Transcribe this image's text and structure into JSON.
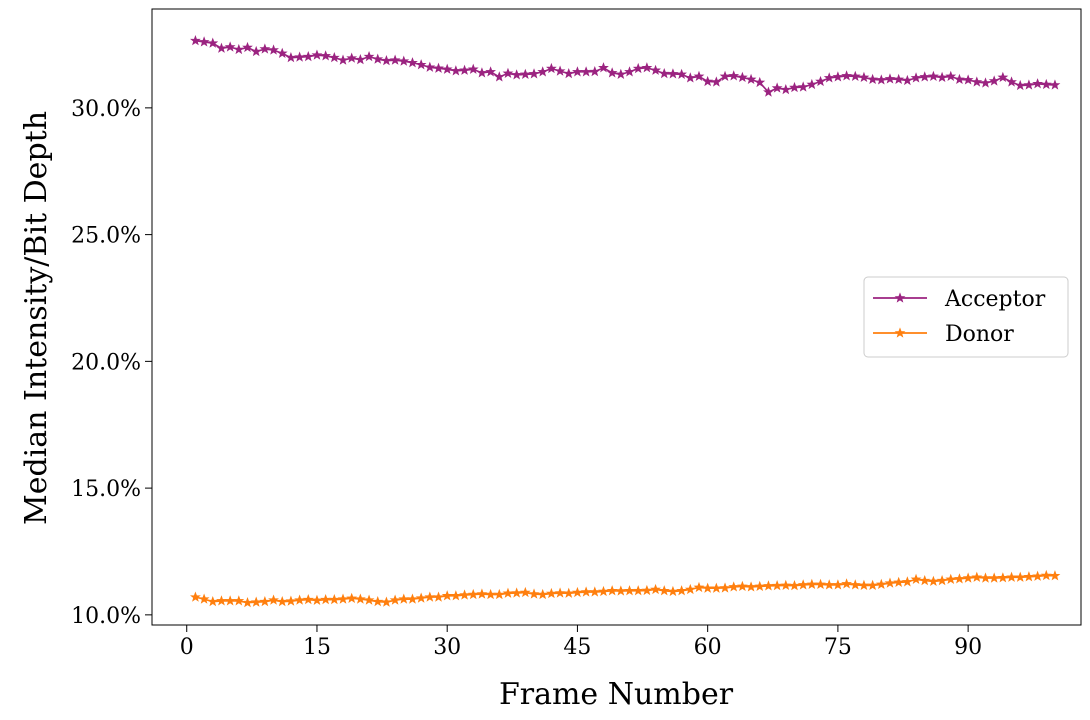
{
  "chart_data": {
    "type": "line",
    "title": "",
    "xlabel": "Frame Number",
    "ylabel": "Median Intensity/Bit Depth",
    "xlim": [
      -4,
      103
    ],
    "ylim": [
      9.6,
      33.9
    ],
    "xticks": [
      0,
      15,
      30,
      45,
      60,
      75,
      90
    ],
    "xtick_labels": [
      "0",
      "15",
      "30",
      "45",
      "60",
      "75",
      "90"
    ],
    "yticks": [
      10,
      15,
      20,
      25,
      30
    ],
    "ytick_labels": [
      "10.0%",
      "15.0%",
      "20.0%",
      "25.0%",
      "30.0%"
    ],
    "grid": false,
    "legend_position": "center-right",
    "marker": "star",
    "x_start": 1,
    "x_step": 1,
    "series": [
      {
        "name": "Acceptor",
        "color": "#9b2380",
        "values": [
          32.65,
          32.6,
          32.55,
          32.35,
          32.4,
          32.3,
          32.38,
          32.22,
          32.32,
          32.28,
          32.15,
          31.98,
          32.0,
          32.02,
          32.08,
          32.05,
          31.98,
          31.88,
          31.96,
          31.9,
          32.02,
          31.92,
          31.86,
          31.88,
          31.84,
          31.78,
          31.7,
          31.6,
          31.56,
          31.52,
          31.46,
          31.48,
          31.52,
          31.38,
          31.42,
          31.22,
          31.36,
          31.3,
          31.32,
          31.34,
          31.42,
          31.55,
          31.45,
          31.35,
          31.42,
          31.42,
          31.43,
          31.58,
          31.38,
          31.32,
          31.42,
          31.55,
          31.58,
          31.48,
          31.35,
          31.34,
          31.32,
          31.18,
          31.24,
          31.04,
          31.02,
          31.24,
          31.26,
          31.2,
          31.12,
          31.0,
          30.62,
          30.78,
          30.72,
          30.8,
          30.82,
          30.92,
          31.04,
          31.18,
          31.22,
          31.26,
          31.24,
          31.2,
          31.12,
          31.1,
          31.14,
          31.12,
          31.08,
          31.18,
          31.22,
          31.24,
          31.2,
          31.24,
          31.12,
          31.1,
          31.02,
          30.98,
          31.06,
          31.2,
          31.02,
          30.88,
          30.9,
          30.95,
          30.92,
          30.9
        ]
      },
      {
        "name": "Donor",
        "color": "#ff7f0e",
        "values": [
          10.7,
          10.62,
          10.52,
          10.55,
          10.55,
          10.55,
          10.48,
          10.5,
          10.52,
          10.58,
          10.52,
          10.54,
          10.58,
          10.6,
          10.57,
          10.6,
          10.6,
          10.62,
          10.65,
          10.62,
          10.58,
          10.52,
          10.5,
          10.58,
          10.62,
          10.62,
          10.66,
          10.7,
          10.7,
          10.75,
          10.75,
          10.78,
          10.8,
          10.82,
          10.8,
          10.8,
          10.85,
          10.86,
          10.88,
          10.82,
          10.8,
          10.84,
          10.86,
          10.85,
          10.88,
          10.9,
          10.9,
          10.92,
          10.95,
          10.94,
          10.95,
          10.95,
          10.96,
          11.0,
          10.95,
          10.92,
          10.95,
          11.0,
          11.08,
          11.05,
          11.05,
          11.06,
          11.1,
          11.12,
          11.1,
          11.12,
          11.14,
          11.15,
          11.16,
          11.15,
          11.18,
          11.2,
          11.2,
          11.18,
          11.18,
          11.22,
          11.18,
          11.16,
          11.16,
          11.2,
          11.25,
          11.28,
          11.3,
          11.4,
          11.35,
          11.32,
          11.35,
          11.4,
          11.42,
          11.45,
          11.48,
          11.45,
          11.45,
          11.46,
          11.48,
          11.48,
          11.5,
          11.52,
          11.55,
          11.54
        ]
      }
    ]
  }
}
